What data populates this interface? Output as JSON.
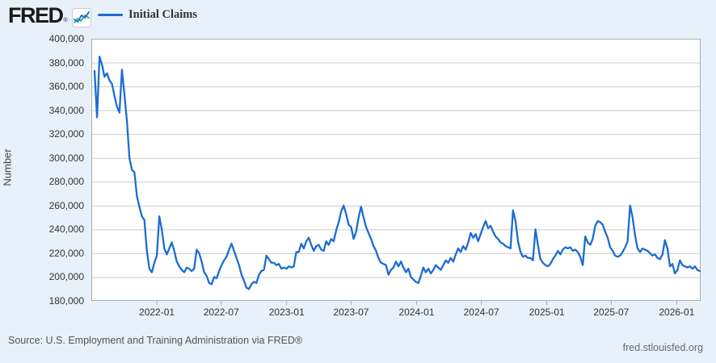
{
  "header": {
    "logo": "FRED",
    "registered_mark": "®",
    "legend": {
      "label": "Initial Claims"
    }
  },
  "chart_data": {
    "type": "line",
    "title": "Initial Claims",
    "ylabel": "Number",
    "ylim": [
      180000,
      400000
    ],
    "grid": "horizontal",
    "legend_position": "top-left",
    "y_tick_labels": [
      "400,000",
      "380,000",
      "360,000",
      "340,000",
      "320,000",
      "300,000",
      "280,000",
      "260,000",
      "240,000",
      "220,000",
      "200,000",
      "180,000"
    ],
    "x_tick_labels": [
      "2022-01",
      "2022-07",
      "2023-01",
      "2023-07",
      "2024-01",
      "2024-07",
      "2025-01",
      "2025-07",
      "2026-01"
    ],
    "series": [
      {
        "name": "Initial Claims",
        "color": "#1c6dd0",
        "frequency": "weekly",
        "start_date": "2021-07-10",
        "values": [
          373000,
          334000,
          385000,
          378000,
          368000,
          371000,
          365000,
          362000,
          352000,
          343000,
          338000,
          374000,
          353000,
          331000,
          300000,
          290000,
          288000,
          268000,
          259000,
          251000,
          248000,
          222000,
          207000,
          204000,
          212000,
          218000,
          251000,
          240000,
          224000,
          219000,
          224000,
          229000,
          222000,
          213000,
          209000,
          206000,
          204000,
          208000,
          207000,
          205000,
          207000,
          223000,
          220000,
          213000,
          204000,
          201000,
          195000,
          194000,
          200000,
          199000,
          205000,
          210000,
          214000,
          217000,
          223000,
          228000,
          222000,
          216000,
          210000,
          202000,
          197000,
          191000,
          190000,
          194000,
          196000,
          195000,
          202000,
          205000,
          206000,
          218000,
          215000,
          212000,
          212000,
          210000,
          211000,
          207000,
          208000,
          207000,
          209000,
          208000,
          209000,
          221000,
          221000,
          228000,
          224000,
          230000,
          233000,
          227000,
          222000,
          226000,
          227000,
          223000,
          222000,
          230000,
          227000,
          232000,
          230000,
          239000,
          246000,
          255000,
          260000,
          253000,
          244000,
          242000,
          232000,
          238000,
          250000,
          259000,
          250000,
          242000,
          237000,
          232000,
          226000,
          222000,
          216000,
          212000,
          211000,
          210000,
          202000,
          206000,
          208000,
          213000,
          209000,
          213000,
          208000,
          204000,
          207000,
          200000,
          198000,
          196000,
          195000,
          201000,
          208000,
          204000,
          207000,
          203000,
          206000,
          210000,
          208000,
          206000,
          210000,
          214000,
          212000,
          216000,
          213000,
          219000,
          224000,
          221000,
          226000,
          223000,
          229000,
          237000,
          233000,
          236000,
          230000,
          236000,
          242000,
          247000,
          241000,
          243000,
          238000,
          234000,
          232000,
          229000,
          228000,
          226000,
          225000,
          224000,
          256000,
          247000,
          230000,
          221000,
          217000,
          218000,
          216000,
          216000,
          214000,
          240000,
          227000,
          215000,
          212000,
          210000,
          209000,
          211000,
          215000,
          218000,
          222000,
          219000,
          223000,
          225000,
          224000,
          225000,
          222000,
          223000,
          221000,
          217000,
          210000,
          234000,
          229000,
          227000,
          232000,
          243000,
          247000,
          246000,
          244000,
          238000,
          233000,
          225000,
          222000,
          218000,
          217000,
          218000,
          221000,
          225000,
          230000,
          260000,
          250000,
          235000,
          224000,
          221000,
          224000,
          223000,
          222000,
          220000,
          218000,
          219000,
          216000,
          215000,
          219000,
          231000,
          224000,
          209000,
          211000,
          203000,
          206000,
          214000,
          210000,
          209000,
          208000,
          209000,
          207000,
          209000,
          206000,
          205000
        ]
      }
    ]
  },
  "footer": {
    "source": "Source: U.S. Employment and Training Administration via FRED®",
    "site_link": "fred.stlouisfed.org"
  },
  "colors": {
    "background": "#e8f1fa",
    "plot_background": "#ffffff",
    "grid": "#cccccc",
    "border": "#acacac",
    "series": "#1c6dd0",
    "icon_line_blue": "#2f6fd0",
    "icon_line_teal": "#46b39a"
  }
}
